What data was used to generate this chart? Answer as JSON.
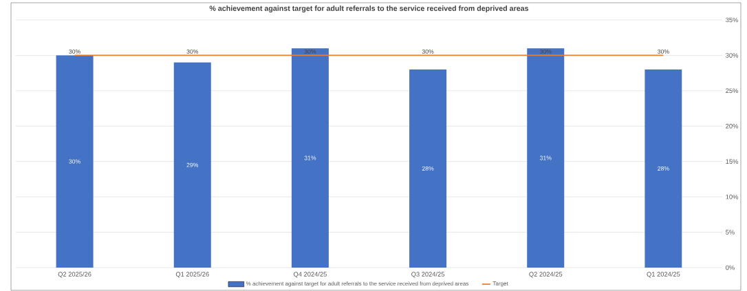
{
  "chart_data": {
    "type": "bar",
    "title": "% achievement against target for adult referrals to the service received from deprived areas",
    "categories": [
      "Q2 2025/26",
      "Q1 2025/26",
      "Q4 2024/25",
      "Q3 2024/25",
      "Q2 2024/25",
      "Q1 2024/25"
    ],
    "series": [
      {
        "name": "% achievement against target for adult referrals to the service received from deprived areas",
        "color": "#4472c4",
        "values": [
          30,
          29,
          31,
          28,
          31,
          28
        ],
        "value_labels": [
          "30%",
          "29%",
          "31%",
          "28%",
          "31%",
          "28%"
        ]
      },
      {
        "name": "Target",
        "type": "line",
        "color": "#ed7d31",
        "values": [
          30,
          30,
          30,
          30,
          30,
          30
        ],
        "value_labels": [
          "30%",
          "30%",
          "30%",
          "30%",
          "30%",
          "30%"
        ]
      }
    ],
    "ylim": [
      0,
      35
    ],
    "yticks": [
      {
        "value": 0,
        "label": "0%"
      },
      {
        "value": 5,
        "label": "5%"
      },
      {
        "value": 10,
        "label": "10%"
      },
      {
        "value": 15,
        "label": "15%"
      },
      {
        "value": 20,
        "label": "20%"
      },
      {
        "value": 25,
        "label": "25%"
      },
      {
        "value": 30,
        "label": "30%"
      },
      {
        "value": 35,
        "label": "35%"
      }
    ],
    "grid": "y",
    "legend": "bottom"
  }
}
